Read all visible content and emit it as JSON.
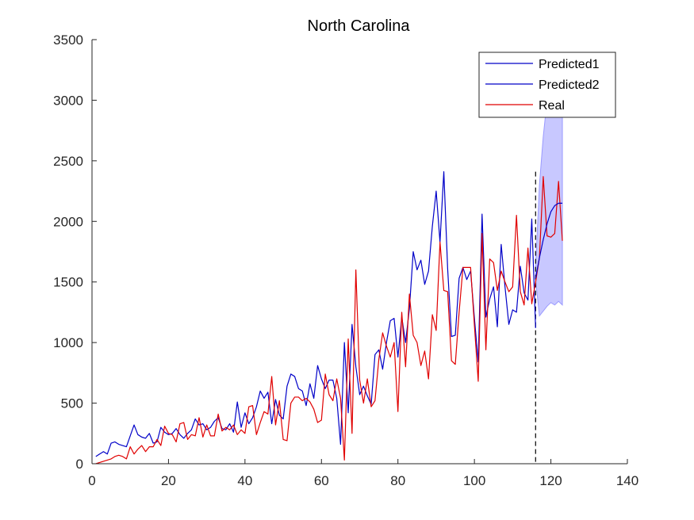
{
  "chart_data": {
    "type": "line",
    "title": "North Carolina",
    "xlabel": "",
    "ylabel": "",
    "xlim": [
      0,
      140
    ],
    "ylim": [
      0,
      3500
    ],
    "xticks": [
      0,
      20,
      40,
      60,
      80,
      100,
      120,
      140
    ],
    "xtick_labels": [
      "0",
      "20",
      "40",
      "60",
      "80",
      "100",
      "120",
      "140"
    ],
    "yticks": [
      0,
      500,
      1000,
      1500,
      2000,
      2500,
      3000,
      3500
    ],
    "ytick_labels": [
      "0",
      "500",
      "1000",
      "1500",
      "2000",
      "2500",
      "3000",
      "3500"
    ],
    "grid": false,
    "legend_position": "top-right",
    "forecast_start_x": 116,
    "colors": {
      "predicted": "#0000c8",
      "real": "#e00000",
      "band": "#c8c8ff",
      "band_edge": "#9a9aff",
      "divider": "#000000"
    },
    "series": [
      {
        "name": "Predicted1",
        "color": "#0000c8",
        "x": [
          116,
          117,
          118,
          119,
          120,
          121,
          122,
          123
        ],
        "y": [
          1530,
          1700,
          1850,
          1980,
          2080,
          2130,
          2150,
          2150
        ]
      },
      {
        "name": "Predicted2",
        "color": "#0000c8",
        "x": [
          1,
          2,
          3,
          4,
          5,
          6,
          7,
          8,
          9,
          10,
          11,
          12,
          13,
          14,
          15,
          16,
          17,
          18,
          19,
          20,
          21,
          22,
          23,
          24,
          25,
          26,
          27,
          28,
          29,
          30,
          31,
          32,
          33,
          34,
          35,
          36,
          37,
          38,
          39,
          40,
          41,
          42,
          43,
          44,
          45,
          46,
          47,
          48,
          49,
          50,
          51,
          52,
          53,
          54,
          55,
          56,
          57,
          58,
          59,
          60,
          61,
          62,
          63,
          64,
          65,
          66,
          67,
          68,
          69,
          70,
          71,
          72,
          73,
          74,
          75,
          76,
          77,
          78,
          79,
          80,
          81,
          82,
          83,
          84,
          85,
          86,
          87,
          88,
          89,
          90,
          91,
          92,
          93,
          94,
          95,
          96,
          97,
          98,
          99,
          100,
          101,
          102,
          103,
          104,
          105,
          106,
          107,
          108,
          109,
          110,
          111,
          112,
          113,
          114,
          115,
          116
        ],
        "y": [
          60,
          80,
          100,
          80,
          170,
          180,
          160,
          150,
          140,
          230,
          320,
          240,
          220,
          210,
          250,
          170,
          180,
          300,
          260,
          240,
          250,
          290,
          240,
          210,
          250,
          280,
          370,
          320,
          330,
          280,
          300,
          350,
          380,
          290,
          280,
          330,
          260,
          510,
          300,
          420,
          330,
          380,
          470,
          600,
          540,
          590,
          330,
          530,
          400,
          370,
          640,
          740,
          720,
          620,
          600,
          480,
          660,
          540,
          810,
          700,
          620,
          690,
          690,
          540,
          160,
          1000,
          420,
          1150,
          800,
          570,
          640,
          560,
          490,
          900,
          940,
          780,
          1000,
          1180,
          1200,
          880,
          1210,
          1000,
          1280,
          1750,
          1600,
          1680,
          1480,
          1590,
          1960,
          2250,
          1830,
          2410,
          1610,
          1050,
          1060,
          1530,
          1620,
          1520,
          1590,
          1200,
          840,
          2060,
          1210,
          1360,
          1460,
          1130,
          1810,
          1460,
          1150,
          1270,
          1250,
          1630,
          1410,
          1350,
          2020,
          1120
        ]
      },
      {
        "name": "Real",
        "color": "#e00000",
        "x": [
          1,
          2,
          3,
          4,
          5,
          6,
          7,
          8,
          9,
          10,
          11,
          12,
          13,
          14,
          15,
          16,
          17,
          18,
          19,
          20,
          21,
          22,
          23,
          24,
          25,
          26,
          27,
          28,
          29,
          30,
          31,
          32,
          33,
          34,
          35,
          36,
          37,
          38,
          39,
          40,
          41,
          42,
          43,
          44,
          45,
          46,
          47,
          48,
          49,
          50,
          51,
          52,
          53,
          54,
          55,
          56,
          57,
          58,
          59,
          60,
          61,
          62,
          63,
          64,
          65,
          66,
          67,
          68,
          69,
          70,
          71,
          72,
          73,
          74,
          75,
          76,
          77,
          78,
          79,
          80,
          81,
          82,
          83,
          84,
          85,
          86,
          87,
          88,
          89,
          90,
          91,
          92,
          93,
          94,
          95,
          96,
          97,
          98,
          99,
          100,
          101,
          102,
          103,
          104,
          105,
          106,
          107,
          108,
          109,
          110,
          111,
          112,
          113,
          114,
          115,
          116,
          117,
          118,
          119,
          120,
          121,
          122,
          123
        ],
        "y": [
          0,
          10,
          20,
          30,
          40,
          60,
          70,
          60,
          40,
          140,
          80,
          120,
          150,
          100,
          140,
          140,
          200,
          150,
          310,
          250,
          240,
          180,
          330,
          340,
          200,
          240,
          230,
          380,
          220,
          320,
          230,
          230,
          410,
          270,
          300,
          280,
          320,
          240,
          280,
          250,
          470,
          480,
          240,
          340,
          430,
          410,
          720,
          320,
          520,
          200,
          190,
          500,
          550,
          550,
          520,
          540,
          510,
          450,
          340,
          360,
          740,
          570,
          520,
          700,
          540,
          30,
          1030,
          250,
          1600,
          690,
          500,
          700,
          470,
          520,
          860,
          1080,
          970,
          880,
          1000,
          430,
          1250,
          800,
          1400,
          1060,
          1000,
          810,
          930,
          700,
          1230,
          1100,
          1830,
          1430,
          1420,
          850,
          820,
          1250,
          1620,
          1620,
          1620,
          1140,
          680,
          1900,
          940,
          1690,
          1660,
          1430,
          1590,
          1500,
          1420,
          1460,
          2050,
          1420,
          1310,
          1780,
          1320,
          1500,
          1700,
          2370,
          1880,
          1870,
          1900,
          2330,
          1840
        ]
      }
    ],
    "confidence_band": {
      "x": [
        116,
        117,
        118,
        119,
        120,
        121,
        122,
        123
      ],
      "upper": [
        1620,
        2300,
        2700,
        3000,
        3100,
        3200,
        3250,
        3300
      ],
      "lower": [
        1520,
        1220,
        1260,
        1300,
        1330,
        1310,
        1340,
        1310
      ]
    }
  }
}
